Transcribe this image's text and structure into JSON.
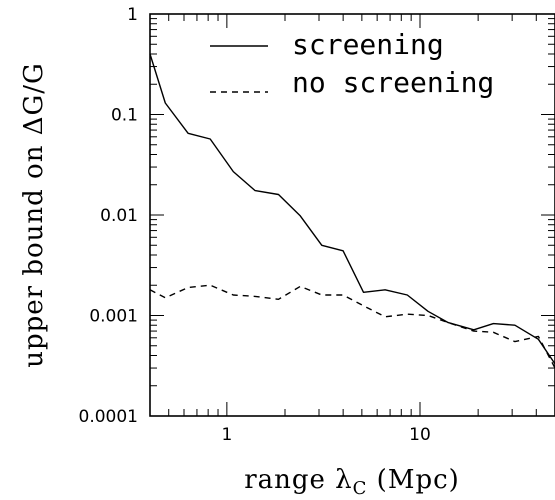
{
  "chart_data": {
    "type": "line",
    "xlabel": "range λ",
    "xlabel_sub": "C",
    "xlabel_suffix": " (Mpc)",
    "ylabel": "upper bound on ΔG/G",
    "xscale": "log",
    "yscale": "log",
    "xlim": [
      0.4,
      50
    ],
    "ylim": [
      0.0001,
      1
    ],
    "x_tick_labels": [
      "1",
      "10"
    ],
    "y_tick_labels": [
      "0.0001",
      "0.001",
      "0.01",
      "0.1",
      "1"
    ],
    "legend_position": "top-right",
    "series": [
      {
        "name": "screening",
        "style": "solid",
        "x": [
          0.4,
          0.48,
          0.63,
          0.82,
          1.08,
          1.4,
          1.85,
          2.4,
          3.1,
          4.0,
          5.1,
          6.6,
          8.6,
          11,
          14,
          19,
          24,
          31,
          41,
          50
        ],
        "y": [
          0.4,
          0.13,
          0.065,
          0.057,
          0.027,
          0.0175,
          0.016,
          0.0098,
          0.005,
          0.0044,
          0.0017,
          0.0018,
          0.0016,
          0.0011,
          0.00085,
          0.00072,
          0.00083,
          0.0008,
          0.00058,
          0.00033
        ]
      },
      {
        "name": "no screening",
        "style": "dashed",
        "x": [
          0.4,
          0.48,
          0.63,
          0.82,
          1.08,
          1.4,
          1.85,
          2.4,
          3.1,
          4.0,
          5.1,
          6.6,
          8.6,
          11,
          14,
          19,
          24,
          31,
          41,
          50
        ],
        "y": [
          0.0018,
          0.0015,
          0.0019,
          0.002,
          0.0016,
          0.00155,
          0.00145,
          0.00195,
          0.0016,
          0.0016,
          0.00125,
          0.00097,
          0.00103,
          0.001,
          0.00085,
          0.0007,
          0.00068,
          0.00055,
          0.00062,
          0.0003
        ]
      }
    ]
  }
}
